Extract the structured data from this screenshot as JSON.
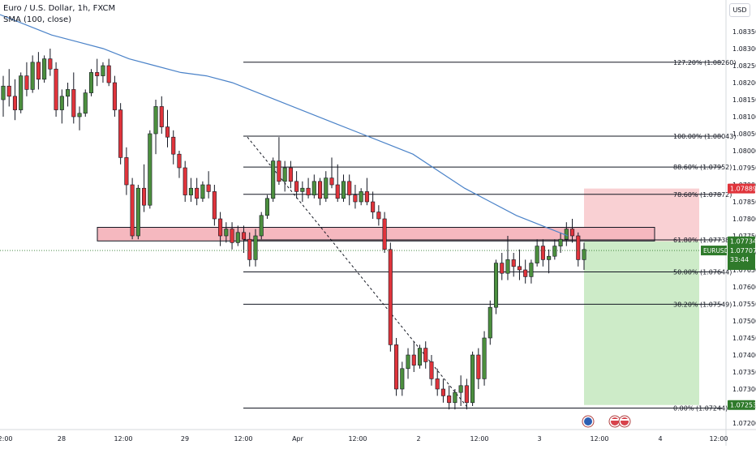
{
  "header": {
    "title": "Euro / U.S. Dollar, 1h, FXCM",
    "indicator": "SMA (100, close)"
  },
  "currency_button": "USD",
  "colors": {
    "up": "#4c8f3e",
    "down": "#e0343b",
    "sma": "#4a82c8",
    "zone_fill": "#f5b8bf",
    "stop_fill": "#f9d0d3",
    "target_fill": "#cdebc8",
    "price_tag": "#2f7a2b",
    "stop_tag": "#e0343b"
  },
  "chart_data": {
    "type": "candlestick",
    "symbol": "EURUSD",
    "timeframe": "1h",
    "ylim": [
      1.072,
      1.084
    ],
    "y_ticks": [
      "1.08350",
      "1.08300",
      "1.08250",
      "1.08200",
      "1.08150",
      "1.08100",
      "1.08050",
      "1.08000",
      "1.07950",
      "1.07900",
      "1.07850",
      "1.07800",
      "1.07750",
      "1.07700",
      "1.07650",
      "1.07600",
      "1.07550",
      "1.07500",
      "1.07450",
      "1.07400",
      "1.07350",
      "1.07300",
      "1.07250",
      "1.07200"
    ],
    "x_ticks": [
      "12:00",
      "28",
      "12:00",
      "29",
      "12:00",
      "Apr",
      "12:00",
      "2",
      "12:00",
      "3",
      "12:00",
      "4",
      "12:00"
    ],
    "candles": [
      [
        1.0815,
        1.0822,
        1.081,
        1.0819
      ],
      [
        1.0819,
        1.0824,
        1.0813,
        1.0816
      ],
      [
        1.0816,
        1.0821,
        1.0809,
        1.0812
      ],
      [
        1.0812,
        1.0823,
        1.0811,
        1.0822
      ],
      [
        1.0822,
        1.0826,
        1.0816,
        1.0818
      ],
      [
        1.0818,
        1.0828,
        1.0817,
        1.0826
      ],
      [
        1.0826,
        1.0829,
        1.0818,
        1.0821
      ],
      [
        1.0821,
        1.0828,
        1.082,
        1.0827
      ],
      [
        1.0827,
        1.083,
        1.0822,
        1.0824
      ],
      [
        1.0824,
        1.0826,
        1.081,
        1.0812
      ],
      [
        1.0812,
        1.0818,
        1.0808,
        1.0816
      ],
      [
        1.0816,
        1.082,
        1.0813,
        1.0818
      ],
      [
        1.0818,
        1.0823,
        1.0808,
        1.081
      ],
      [
        1.081,
        1.0813,
        1.0806,
        1.0811
      ],
      [
        1.0811,
        1.0818,
        1.081,
        1.0817
      ],
      [
        1.0817,
        1.0824,
        1.0816,
        1.0823
      ],
      [
        1.0823,
        1.0827,
        1.0819,
        1.0822
      ],
      [
        1.0822,
        1.0826,
        1.082,
        1.0825
      ],
      [
        1.0825,
        1.0827,
        1.0819,
        1.082
      ],
      [
        1.082,
        1.0822,
        1.081,
        1.0812
      ],
      [
        1.0812,
        1.0814,
        1.0796,
        1.0798
      ],
      [
        1.0798,
        1.0801,
        1.0787,
        1.079
      ],
      [
        1.079,
        1.0792,
        1.0774,
        1.0775
      ],
      [
        1.0775,
        1.079,
        1.0774,
        1.0789
      ],
      [
        1.0789,
        1.0796,
        1.0782,
        1.0784
      ],
      [
        1.0784,
        1.0806,
        1.0783,
        1.0805
      ],
      [
        1.0805,
        1.0815,
        1.0799,
        1.0813
      ],
      [
        1.0813,
        1.0816,
        1.0805,
        1.0807
      ],
      [
        1.0807,
        1.0812,
        1.0801,
        1.0804
      ],
      [
        1.0804,
        1.0806,
        1.0796,
        1.0799
      ],
      [
        1.0799,
        1.08,
        1.0792,
        1.0795
      ],
      [
        1.0795,
        1.0797,
        1.0785,
        1.0787
      ],
      [
        1.0787,
        1.0792,
        1.0785,
        1.0789
      ],
      [
        1.0789,
        1.0792,
        1.0784,
        1.0786
      ],
      [
        1.0786,
        1.0791,
        1.0785,
        1.079
      ],
      [
        1.079,
        1.0794,
        1.0786,
        1.0788
      ],
      [
        1.0788,
        1.079,
        1.0778,
        1.078
      ],
      [
        1.078,
        1.0782,
        1.0772,
        1.0775
      ],
      [
        1.0775,
        1.0779,
        1.0773,
        1.0777
      ],
      [
        1.0777,
        1.0779,
        1.0771,
        1.0773
      ],
      [
        1.0773,
        1.0778,
        1.0772,
        1.0776
      ],
      [
        1.0776,
        1.0778,
        1.077,
        1.0774
      ],
      [
        1.0774,
        1.0776,
        1.0766,
        1.0768
      ],
      [
        1.0768,
        1.0777,
        1.0766,
        1.0775
      ],
      [
        1.0775,
        1.0782,
        1.0774,
        1.0781
      ],
      [
        1.0781,
        1.0787,
        1.078,
        1.0786
      ],
      [
        1.0786,
        1.0798,
        1.0785,
        1.0797
      ],
      [
        1.0797,
        1.0804,
        1.079,
        1.0791
      ],
      [
        1.0791,
        1.0797,
        1.0788,
        1.0795
      ],
      [
        1.0795,
        1.0797,
        1.0789,
        1.0791
      ],
      [
        1.0791,
        1.0794,
        1.0786,
        1.0788
      ],
      [
        1.0788,
        1.0791,
        1.0785,
        1.0789
      ],
      [
        1.0789,
        1.0792,
        1.0786,
        1.0787
      ],
      [
        1.0787,
        1.0793,
        1.0786,
        1.0791
      ],
      [
        1.0791,
        1.0792,
        1.0784,
        1.0786
      ],
      [
        1.0786,
        1.0794,
        1.0785,
        1.0792
      ],
      [
        1.0792,
        1.0798,
        1.0789,
        1.079
      ],
      [
        1.079,
        1.0796,
        1.0785,
        1.0786
      ],
      [
        1.0786,
        1.0793,
        1.0785,
        1.0791
      ],
      [
        1.0791,
        1.0793,
        1.0784,
        1.0787
      ],
      [
        1.0787,
        1.079,
        1.0783,
        1.0785
      ],
      [
        1.0785,
        1.0789,
        1.0784,
        1.0788
      ],
      [
        1.0788,
        1.0792,
        1.0784,
        1.0785
      ],
      [
        1.0785,
        1.0788,
        1.078,
        1.0782
      ],
      [
        1.0782,
        1.0784,
        1.0778,
        1.078
      ],
      [
        1.078,
        1.0782,
        1.077,
        1.0771
      ],
      [
        1.0771,
        1.0773,
        1.0741,
        1.0743
      ],
      [
        1.0743,
        1.0745,
        1.0728,
        1.073
      ],
      [
        1.073,
        1.0738,
        1.0728,
        1.0736
      ],
      [
        1.0736,
        1.0742,
        1.0733,
        1.074
      ],
      [
        1.074,
        1.0744,
        1.0735,
        1.0737
      ],
      [
        1.0737,
        1.0743,
        1.0736,
        1.0742
      ],
      [
        1.0742,
        1.0744,
        1.0736,
        1.0738
      ],
      [
        1.0738,
        1.074,
        1.0731,
        1.0733
      ],
      [
        1.0733,
        1.0736,
        1.0728,
        1.073
      ],
      [
        1.073,
        1.0733,
        1.0726,
        1.0728
      ],
      [
        1.0728,
        1.0731,
        1.0724,
        1.0726
      ],
      [
        1.0726,
        1.073,
        1.0724,
        1.0729
      ],
      [
        1.0729,
        1.0734,
        1.0725,
        1.0731
      ],
      [
        1.0731,
        1.0733,
        1.0724,
        1.0726
      ],
      [
        1.0726,
        1.0741,
        1.0725,
        1.074
      ],
      [
        1.074,
        1.0742,
        1.073,
        1.0733
      ],
      [
        1.0733,
        1.0747,
        1.0731,
        1.0745
      ],
      [
        1.0745,
        1.0756,
        1.0743,
        1.0754
      ],
      [
        1.0754,
        1.0768,
        1.0752,
        1.0767
      ],
      [
        1.0767,
        1.077,
        1.0762,
        1.0764
      ],
      [
        1.0764,
        1.0775,
        1.0762,
        1.0768
      ],
      [
        1.0768,
        1.077,
        1.0763,
        1.0766
      ],
      [
        1.0766,
        1.0771,
        1.0762,
        1.0765
      ],
      [
        1.0765,
        1.0768,
        1.0761,
        1.0763
      ],
      [
        1.0763,
        1.0768,
        1.0761,
        1.0767
      ],
      [
        1.0767,
        1.0774,
        1.0766,
        1.0772
      ],
      [
        1.0772,
        1.0774,
        1.0766,
        1.0768
      ],
      [
        1.0768,
        1.0771,
        1.0764,
        1.0769
      ],
      [
        1.0769,
        1.0774,
        1.0768,
        1.0772
      ],
      [
        1.0772,
        1.0776,
        1.077,
        1.0774
      ],
      [
        1.0774,
        1.0779,
        1.0772,
        1.0777
      ],
      [
        1.0777,
        1.078,
        1.0773,
        1.0775
      ],
      [
        1.0775,
        1.0776,
        1.0766,
        1.0768
      ],
      [
        1.0768,
        1.0773,
        1.0765,
        1.0771
      ]
    ],
    "x_start_hour": 29,
    "sma_100": [
      1.084,
      1.0837,
      1.0834,
      1.0832,
      1.083,
      1.0827,
      1.0825,
      1.0823,
      1.0822,
      1.082,
      1.0817,
      1.0814,
      1.0811,
      1.0808,
      1.0805,
      1.0802,
      1.0799,
      1.0794,
      1.0789,
      1.0785,
      1.0781,
      1.0778,
      1.0775
    ],
    "fib_levels": [
      {
        "label": "127.20% (1.08260)",
        "value": 1.0826
      },
      {
        "label": "100.00% (1.08043)",
        "value": 1.08043
      },
      {
        "label": "88.60% (1.07952)",
        "value": 1.07952
      },
      {
        "label": "78.60% (1.07872)",
        "value": 1.07872
      },
      {
        "label": "61.80% (1.07738)",
        "value": 1.07738
      },
      {
        "label": "50.00% (1.07644)",
        "value": 1.07644
      },
      {
        "label": "38.20% (1.07549)",
        "value": 1.07549
      },
      {
        "label": "0.00% (1.07244)",
        "value": 1.07244
      }
    ],
    "zone": {
      "top": 1.07775,
      "bottom": 1.07735
    },
    "trade": {
      "entry": 1.07734,
      "stop": 1.07889,
      "target": 1.07253
    },
    "price_tags": [
      {
        "label": "1.07889",
        "value": 1.07889,
        "kind": "stop"
      },
      {
        "label": "1.07734",
        "value": 1.07734,
        "kind": "price"
      },
      {
        "label": "1.07253",
        "value": 1.07253,
        "kind": "target"
      }
    ],
    "current": {
      "symbol": "EURUSD",
      "price": "1.07707",
      "countdown": "33:44",
      "value": 1.07707
    }
  }
}
